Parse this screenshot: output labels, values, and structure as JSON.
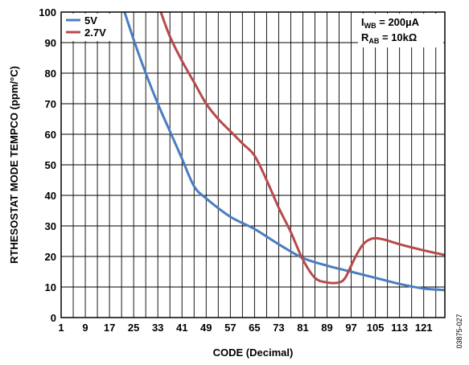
{
  "chart_data": {
    "type": "line",
    "title": "",
    "xlabel": "CODE (Decimal)",
    "ylabel": "RTHESOSTAT MODE TEMPCO (ppm/°C)",
    "xlim": [
      1,
      128
    ],
    "ylim": [
      0,
      100
    ],
    "x_ticks": [
      1,
      9,
      17,
      25,
      33,
      41,
      49,
      57,
      65,
      73,
      81,
      89,
      97,
      105,
      113,
      121
    ],
    "x_tick_labels": [
      "1",
      "9",
      "17",
      "25",
      "33",
      "41",
      "49",
      "57",
      "65",
      "73",
      "81",
      "89",
      "97",
      "105",
      "113",
      "121"
    ],
    "y_ticks": [
      0,
      10,
      20,
      30,
      40,
      50,
      60,
      70,
      80,
      90,
      100
    ],
    "y_tick_labels": [
      "0",
      "10",
      "20",
      "30",
      "40",
      "50",
      "60",
      "70",
      "80",
      "90",
      "100"
    ],
    "grid": true,
    "legend_position": "top-left",
    "annotations": {
      "iwb": {
        "main": "I",
        "sub": "WB",
        "rest": " = 200µA"
      },
      "rab": {
        "main": "R",
        "sub": "AB",
        "rest": " = 10kΩ"
      }
    },
    "figure_id": "03875-027",
    "series": [
      {
        "name": "5V",
        "color": "#4a7dbf",
        "x": [
          22,
          25,
          29,
          33,
          37,
          41,
          45,
          49,
          57,
          65,
          73,
          81,
          89,
          97,
          105,
          113,
          121,
          128
        ],
        "y": [
          100,
          91,
          80,
          70,
          61,
          52,
          43,
          39,
          33,
          29,
          24,
          19.5,
          17,
          15,
          13,
          11,
          9.5,
          9
        ]
      },
      {
        "name": "2.7V",
        "color": "#b84a4a",
        "x": [
          34,
          37,
          41,
          45,
          49,
          53,
          57,
          61,
          65,
          69,
          73,
          77,
          81,
          85,
          89,
          93,
          95,
          97,
          99,
          101,
          103,
          105,
          108,
          113,
          121,
          128
        ],
        "y": [
          100,
          92,
          84,
          77,
          70,
          65,
          61,
          57,
          53,
          45,
          36,
          28,
          19,
          13,
          11.5,
          11.5,
          13,
          17,
          21,
          24,
          25.5,
          26,
          25.5,
          24,
          22,
          20.5
        ]
      }
    ]
  }
}
